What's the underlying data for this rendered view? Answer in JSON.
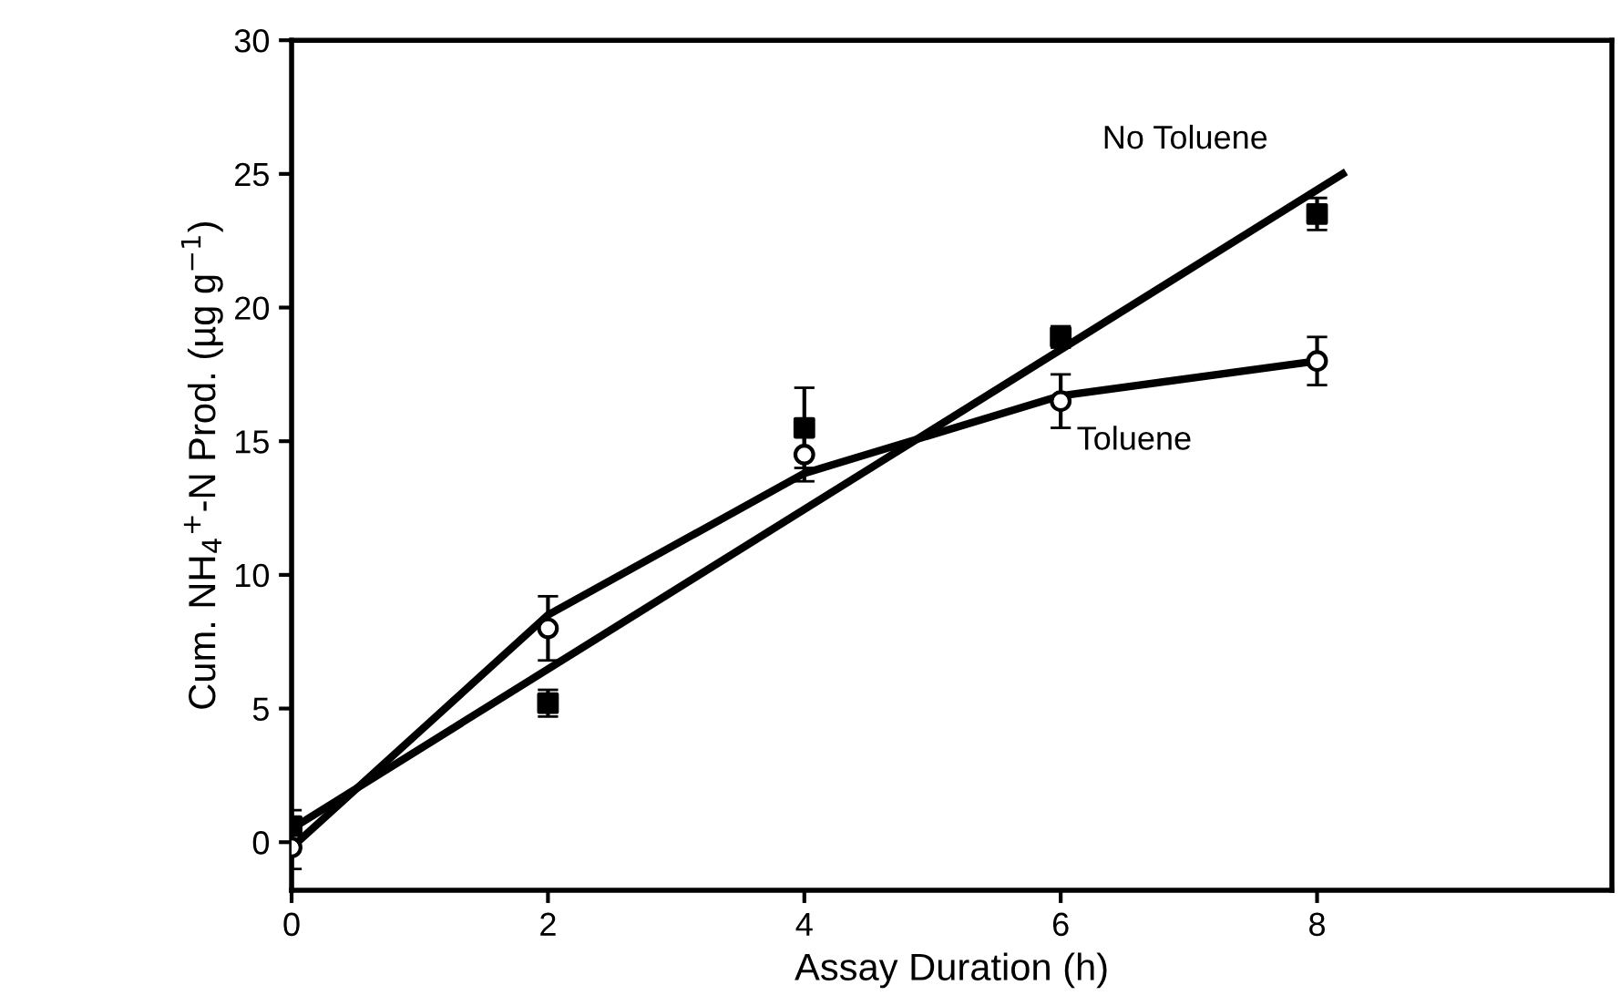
{
  "chart_data": {
    "type": "scatter",
    "xlabel": "Assay Duration (h)",
    "ylabel": "Cum. NH$_{4}$$^{+}$-N Prod. (µg g$^{−1}$)",
    "xlim": [
      0,
      10.3
    ],
    "ylim": [
      -1.8,
      30
    ],
    "xticks": [
      0,
      2,
      4,
      6,
      8
    ],
    "yticks": [
      0,
      5,
      10,
      15,
      20,
      25,
      30
    ],
    "grid": false,
    "legend": false,
    "series": [
      {
        "color": "#000000",
        "marker": "square",
        "x": [
          0,
          2,
          4,
          6,
          8
        ],
        "values": [
          0.6,
          5.2,
          15.5,
          18.9,
          23.5
        ],
        "errors": [
          0.6,
          0.5,
          1.5,
          0.4,
          0.6
        ]
      },
      {
        "color": "#000000",
        "marker": "circle",
        "x": [
          0,
          2,
          4,
          6,
          8
        ],
        "values": [
          -0.2,
          8.0,
          14.5,
          16.5,
          18.0
        ],
        "errors": [
          0.8,
          1.2,
          1.0,
          1.0,
          0.9
        ]
      },
      {
        "type": "line",
        "name": "No Toluene",
        "color": "#000000",
        "x": [
          0,
          8.2
        ],
        "values": [
          0.5,
          25.0
        ]
      },
      {
        "type": "line",
        "name": "Toluene",
        "color": "#000000",
        "x": [
          0,
          2,
          4,
          6,
          8
        ],
        "values": [
          -0.2,
          8.5,
          13.8,
          16.7,
          18.0
        ]
      }
    ]
  }
}
